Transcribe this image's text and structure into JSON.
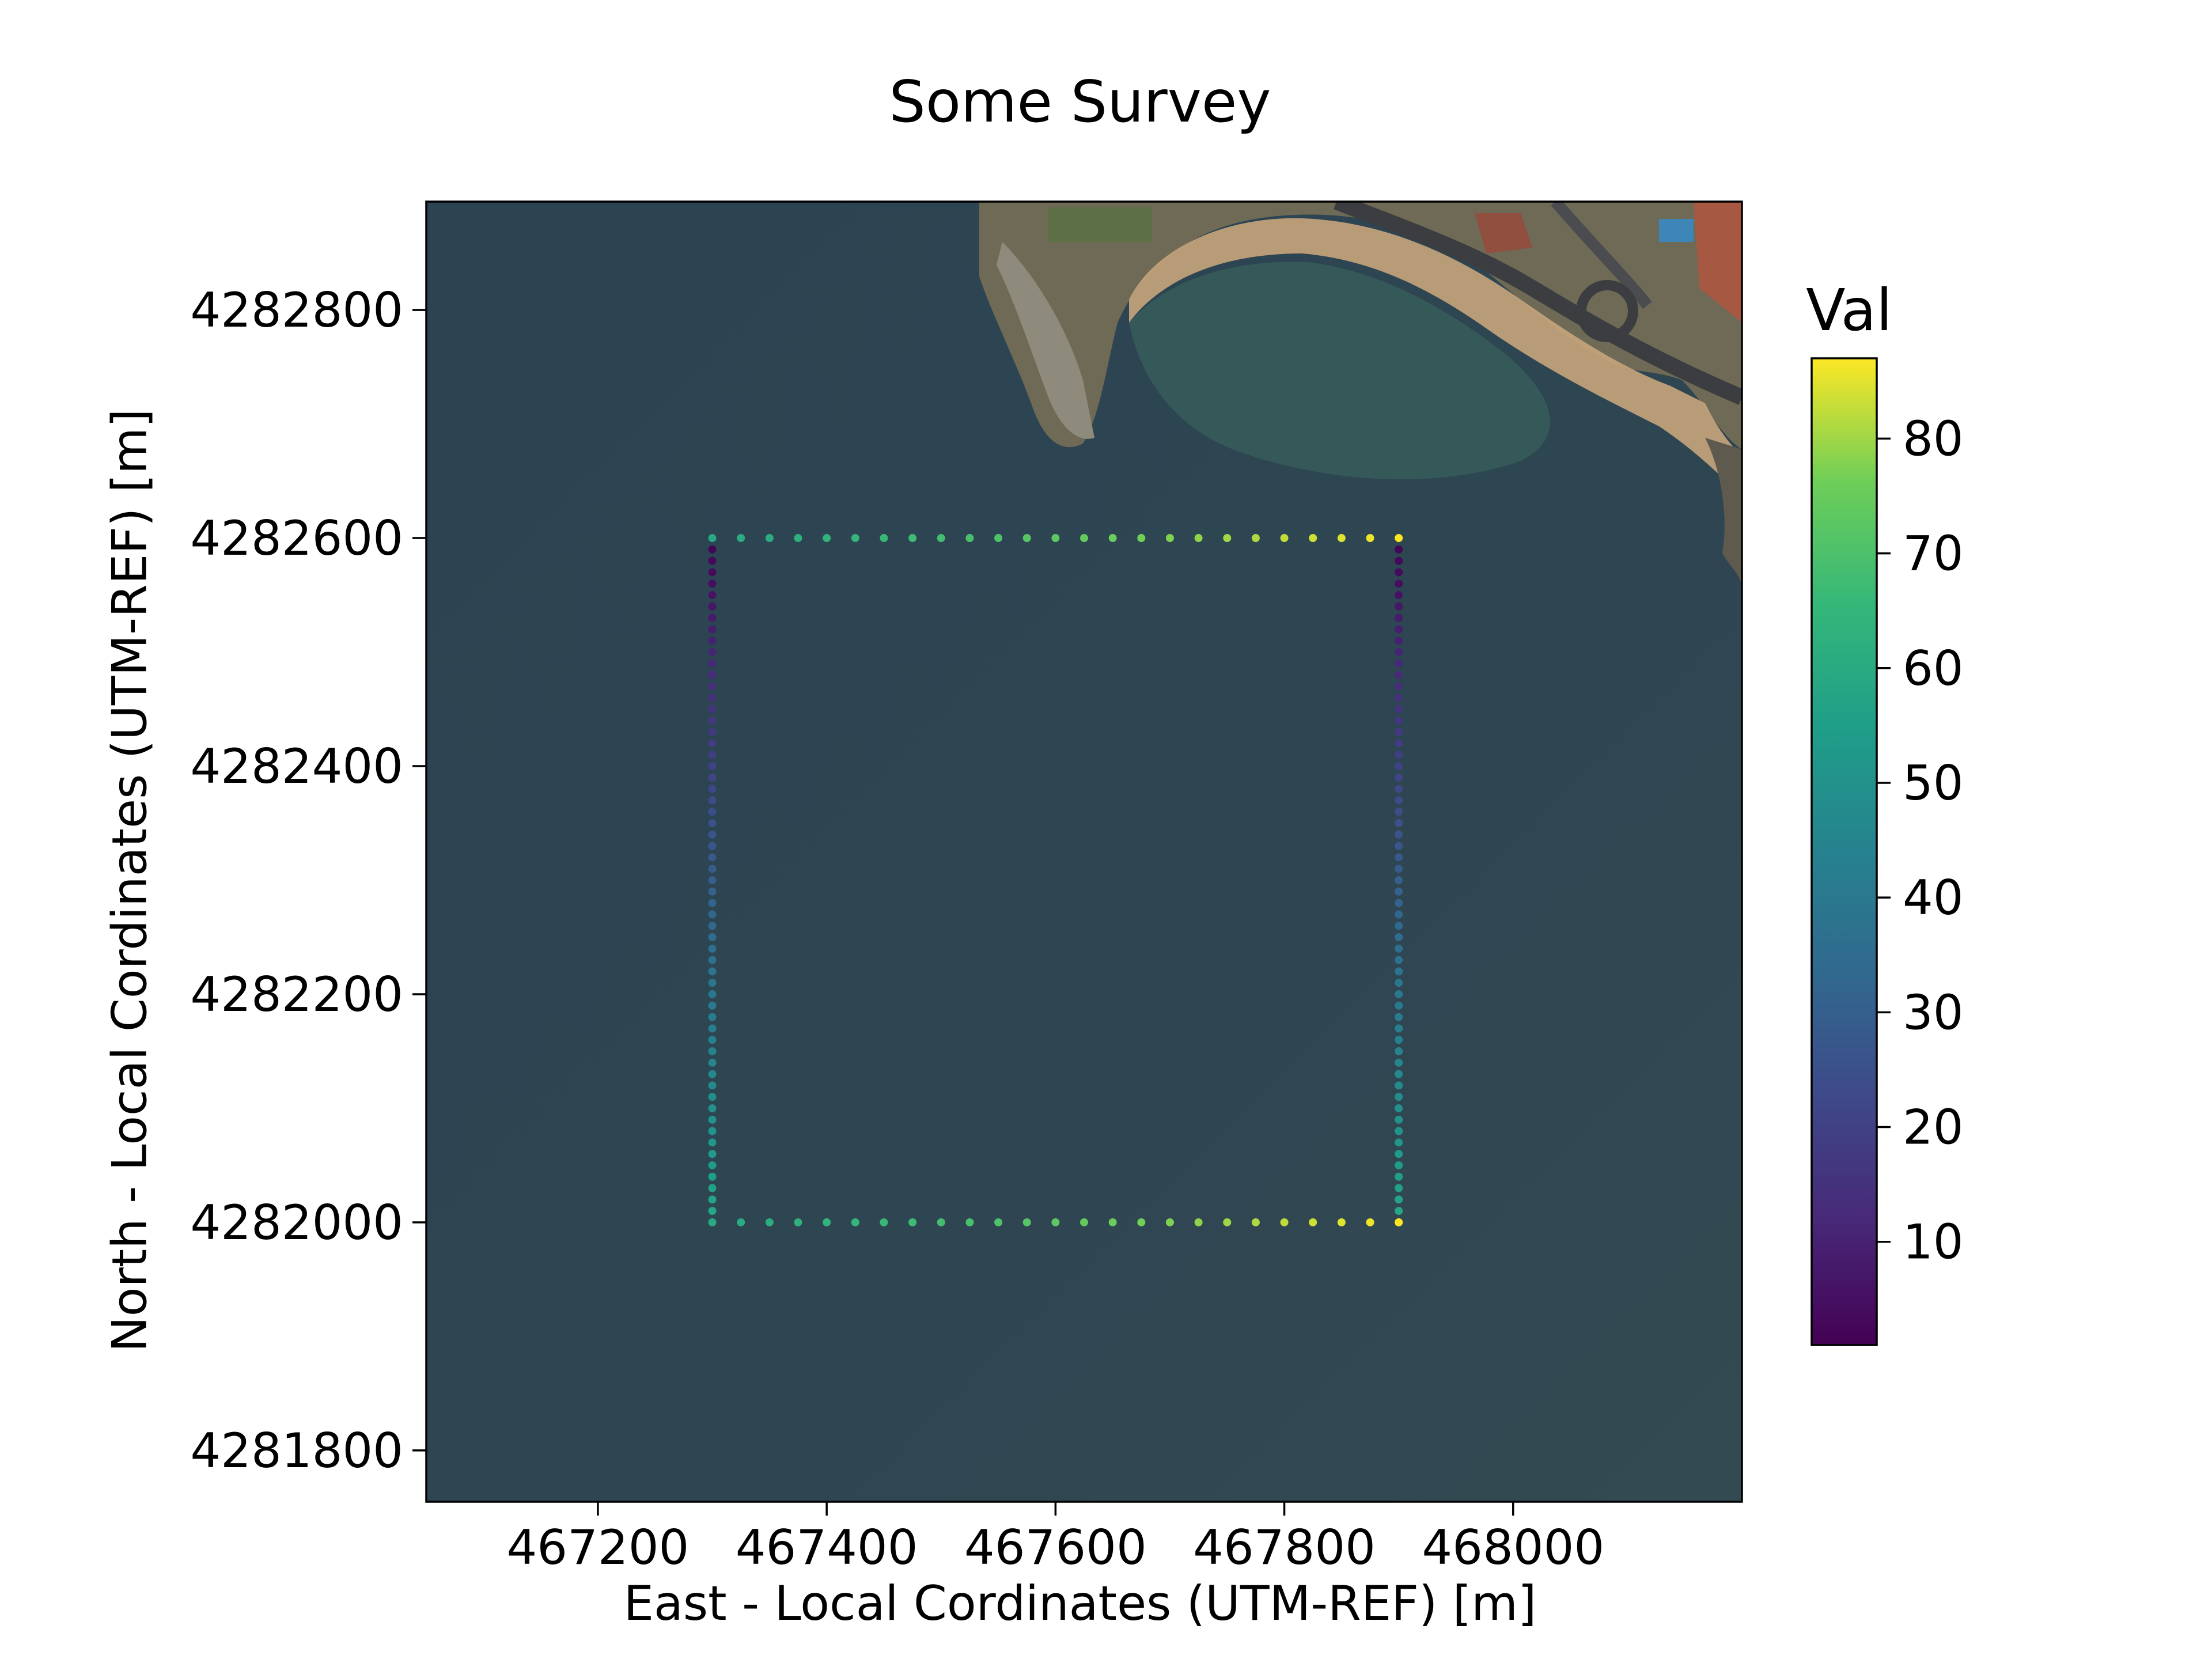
{
  "chart_data": {
    "type": "scatter",
    "title": "Some Survey",
    "xlabel": "East - Local Cordinates (UTM-REF) [m]",
    "ylabel": "North - Local Cordinates (UTM-REF) [m]",
    "xlim": [
      467050,
      468200
    ],
    "ylim": [
      4281755,
      4282895
    ],
    "x_ticks": [
      467200,
      467400,
      467600,
      467800,
      468000
    ],
    "y_ticks": [
      4281800,
      4282000,
      4282200,
      4282400,
      4282600,
      4282800
    ],
    "background": "satellite image (coastline, beach, roads in upper right, sea elsewhere)",
    "colormap": "viridis",
    "colorbar": {
      "label": "Val",
      "range": [
        1,
        87
      ],
      "ticks": [
        10,
        20,
        30,
        40,
        50,
        60,
        70,
        80
      ]
    },
    "series": [
      {
        "x_range": [
          467300,
          467900
        ],
        "y_range": [
          4282000,
          4282600
        ],
        "segments": [
          {
            "side": "west",
            "x": 467300,
            "y_from": 4282000,
            "y_to": 4282600,
            "step": 10,
            "value_from": 59,
            "value_to": 1
          },
          {
            "side": "east",
            "x": 467900,
            "y_from": 4282000,
            "y_to": 4282600,
            "step": 10,
            "value_from": 59,
            "value_to": 1
          },
          {
            "side": "south",
            "y": 4282000,
            "x_from": 467300,
            "x_to": 467900,
            "step": 25,
            "value_from": 59,
            "value_to": 87
          },
          {
            "side": "north",
            "y": 4282600,
            "x_from": 467300,
            "x_to": 467900,
            "step": 25,
            "value_from": 59,
            "value_to": 87
          }
        ]
      }
    ]
  }
}
